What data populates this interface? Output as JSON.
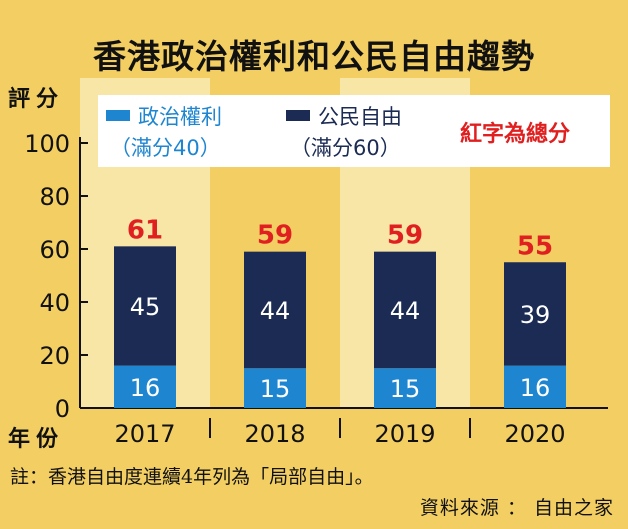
{
  "chart_data": {
    "type": "bar",
    "stacked": true,
    "title": "香港政治權利和公民自由趨勢",
    "ylabel": "評分",
    "xlabel": "年份",
    "ylim": [
      0,
      100
    ],
    "yticks": [
      0,
      20,
      40,
      60,
      80,
      100
    ],
    "categories": [
      "2017",
      "2018",
      "2019",
      "2020"
    ],
    "series": [
      {
        "name": "政治權利",
        "sub": "（滿分40）",
        "color": "#1e86d0",
        "values": [
          16,
          15,
          15,
          16
        ]
      },
      {
        "name": "公民自由",
        "sub": "（滿分60）",
        "color": "#1b2b54",
        "values": [
          45,
          44,
          44,
          39
        ]
      }
    ],
    "totals": [
      61,
      59,
      59,
      55
    ],
    "totals_note": "紅字為總分",
    "totals_color": "#e02020",
    "grid": false,
    "legend_position": "top"
  },
  "footer": {
    "note": "註：香港自由度連續4年列為「局部自由」。",
    "source": "資料來源 ： 自由之家"
  }
}
